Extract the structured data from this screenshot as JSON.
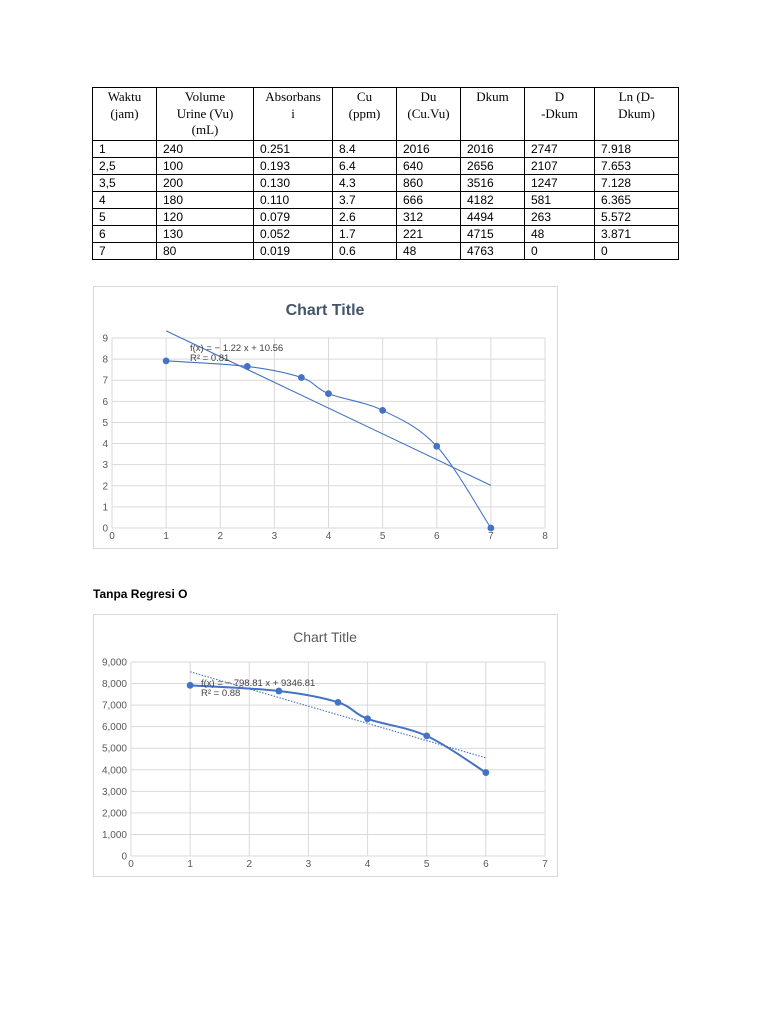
{
  "table": {
    "headers": [
      "Waktu\n(jam)",
      "Volume\nUrine (Vu)\n(mL)",
      "Absorbans\ni",
      "Cu\n(ppm)",
      "Du\n(Cu.Vu)",
      "Dkum",
      "D\n-Dkum",
      "Ln (D-\nDkum)"
    ],
    "rows": [
      [
        "1",
        "240",
        "0.251",
        "8.4",
        "2016",
        "2016",
        "2747",
        "7.918"
      ],
      [
        "2,5",
        "100",
        "0.193",
        "6.4",
        "640",
        "2656",
        "2107",
        "7.653"
      ],
      [
        "3,5",
        "200",
        "0.130",
        "4.3",
        "860",
        "3516",
        "1247",
        "7.128"
      ],
      [
        "4",
        "180",
        "0.110",
        "3.7",
        "666",
        "4182",
        "581",
        "6.365"
      ],
      [
        "5",
        "120",
        "0.079",
        "2.6",
        "312",
        "4494",
        "263",
        "5.572"
      ],
      [
        "6",
        "130",
        "0.052",
        "1.7",
        "221",
        "4715",
        "48",
        "3.871"
      ],
      [
        "7",
        "80",
        "0.019",
        "0.6",
        "48",
        "4763",
        "0",
        "0"
      ]
    ]
  },
  "section_heading": "Tanpa Regresi O",
  "chart_data": [
    {
      "type": "scatter",
      "title": "Chart Title",
      "x": [
        1,
        2.5,
        3.5,
        4,
        5,
        6,
        7
      ],
      "y": [
        7.918,
        7.653,
        7.128,
        6.365,
        5.572,
        3.871,
        0
      ],
      "smooth_line": true,
      "trendline": {
        "kind": "linear",
        "slope": -1.22,
        "intercept": 10.56,
        "x_range": [
          1,
          7
        ],
        "style": "solid"
      },
      "equation": "f(x) = − 1.22 x + 10.56",
      "r_squared": "R² = 0.81",
      "xlim": [
        0,
        8
      ],
      "ylim": [
        0,
        9
      ],
      "x_ticks": [
        "0",
        "1",
        "2",
        "3",
        "4",
        "5",
        "6",
        "7",
        "8"
      ],
      "y_ticks": [
        "0",
        "1",
        "2",
        "3",
        "4",
        "5",
        "6",
        "7",
        "8",
        "9"
      ],
      "grid": true,
      "colors": {
        "series": "#4472c4",
        "title": "#44546a",
        "grid": "#d9d9d9",
        "axis_text": "#595959"
      }
    },
    {
      "type": "scatter",
      "title": "Chart Title",
      "x": [
        1,
        2.5,
        3.5,
        4,
        5,
        6
      ],
      "y": [
        7918,
        7653,
        7128,
        6365,
        5572,
        3871
      ],
      "smooth_line": true,
      "trendline": {
        "kind": "linear",
        "slope": -798.81,
        "intercept": 9346.81,
        "x_range": [
          1,
          6
        ],
        "style": "dotted"
      },
      "equation": "f(x) = − 798.81 x + 9346.81",
      "r_squared": "R² = 0.88",
      "xlim": [
        0,
        7
      ],
      "ylim": [
        0,
        9000
      ],
      "x_ticks": [
        "0",
        "1",
        "2",
        "3",
        "4",
        "5",
        "6",
        "7"
      ],
      "y_ticks": [
        "0",
        "1,000",
        "2,000",
        "3,000",
        "4,000",
        "5,000",
        "6,000",
        "7,000",
        "8,000",
        "9,000"
      ],
      "grid": true,
      "colors": {
        "series": "#4472c4",
        "title": "#595959",
        "grid": "#d9d9d9",
        "axis_text": "#595959"
      }
    }
  ]
}
